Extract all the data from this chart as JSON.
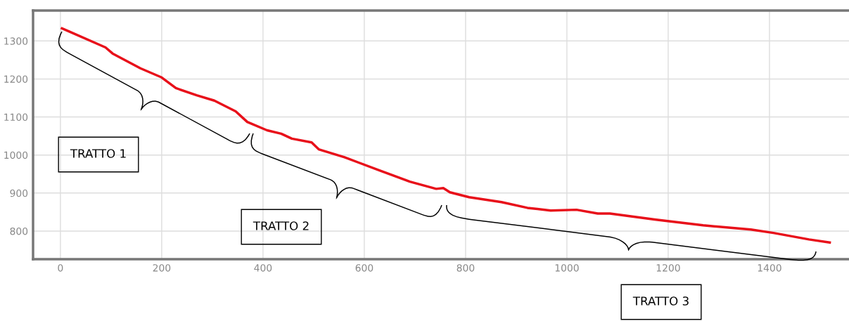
{
  "chart_data": {
    "type": "line",
    "x": [
      3,
      19,
      89,
      103,
      158,
      200,
      228,
      269,
      304,
      346,
      369,
      408,
      436,
      457,
      496,
      510,
      561,
      631,
      690,
      742,
      756,
      769,
      807,
      871,
      922,
      968,
      1019,
      1061,
      1085,
      1176,
      1269,
      1363,
      1408,
      1478,
      1519
    ],
    "series": [
      {
        "color": "#e8101a",
        "values": [
          1333,
          1324,
          1283,
          1267,
          1228,
          1204,
          1176,
          1157,
          1143,
          1115,
          1087,
          1065,
          1056,
          1043,
          1033,
          1015,
          994,
          959,
          930,
          911,
          913,
          902,
          889,
          876,
          861,
          854,
          856,
          846,
          846,
          830,
          815,
          804,
          795,
          778,
          770
        ]
      }
    ],
    "xlim": [
      -54,
      1557
    ],
    "ylim": [
      726,
      1380
    ],
    "xticks": [
      0,
      200,
      400,
      600,
      800,
      1000,
      1200,
      1400
    ],
    "yticks": [
      800,
      900,
      1000,
      1100,
      1200,
      1300
    ],
    "grid": true,
    "marker": "none",
    "line_style": "solid",
    "legend": false,
    "annotations": [
      "TRATTO 1",
      "TRATTO 2",
      "TRATTO 3"
    ]
  }
}
